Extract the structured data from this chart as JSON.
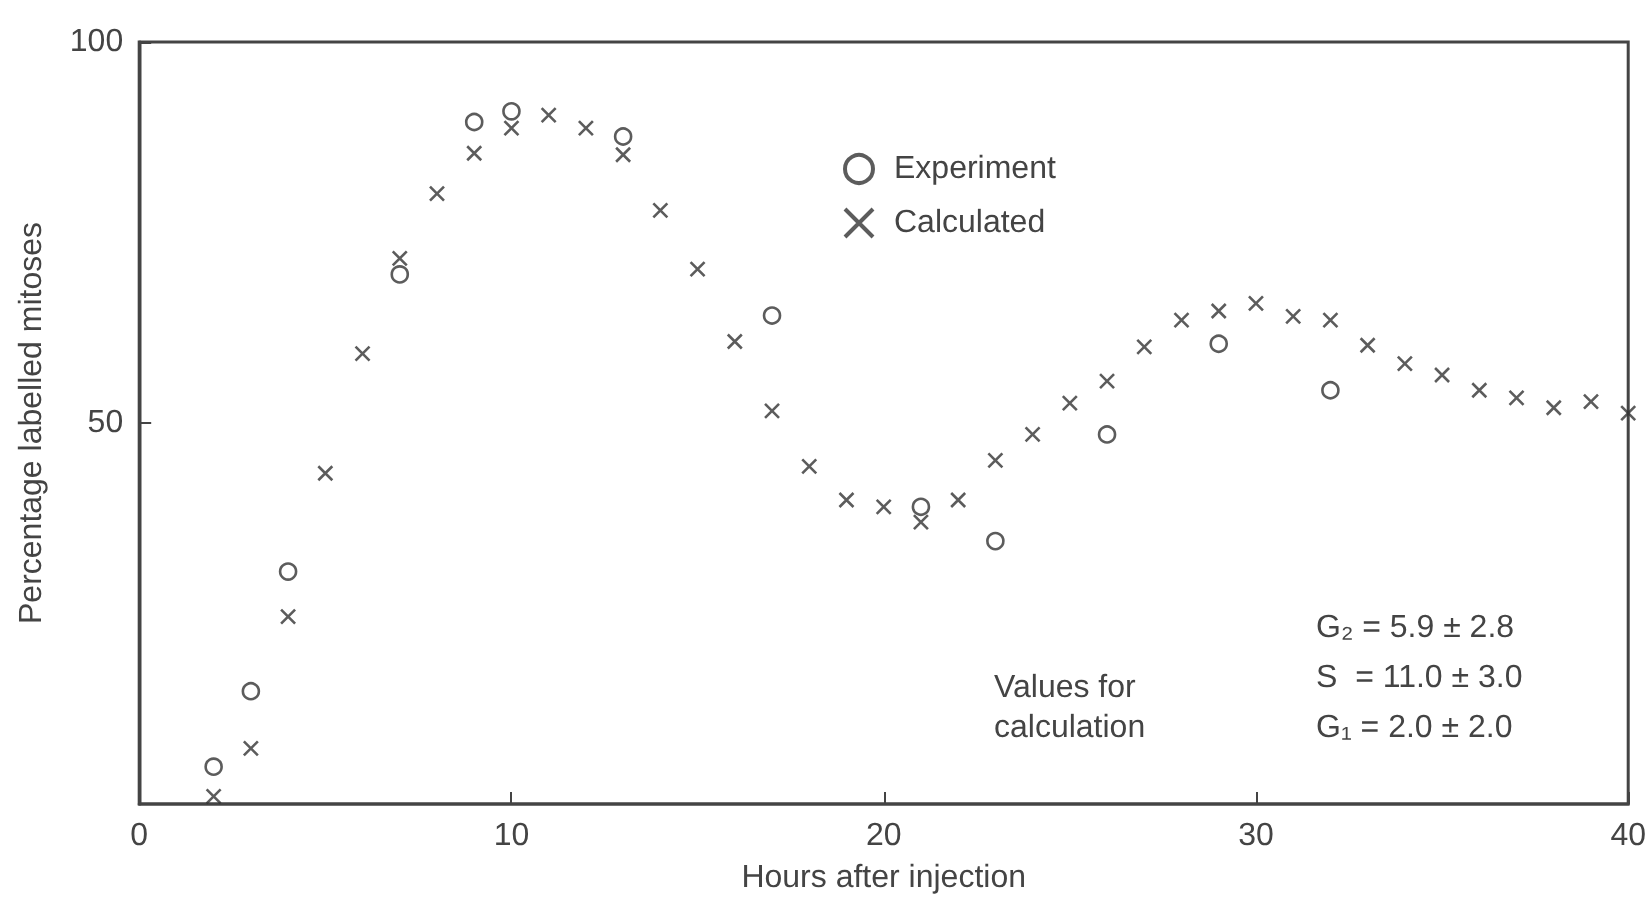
{
  "chart_data": {
    "type": "scatter",
    "xlabel": "Hours after injection",
    "ylabel": "Percentage labelled mitoses",
    "xlim": [
      0,
      40
    ],
    "xticks": [
      0,
      10,
      20,
      30,
      40
    ],
    "ylim": [
      0,
      100
    ],
    "yticks": [
      50,
      100
    ],
    "grid": false,
    "legend": "top",
    "series": [
      {
        "name": "Experiment",
        "color": "#333333",
        "marker": "circle",
        "x": [
          2,
          3,
          4,
          7,
          9,
          10,
          13,
          17,
          21,
          23,
          26,
          29,
          32
        ],
        "values": [
          4.9,
          14.8,
          30.5,
          69.5,
          89.5,
          90.9,
          87.6,
          64.1,
          39.0,
          34.5,
          48.5,
          60.4,
          54.3
        ]
      },
      {
        "name": "Calculated",
        "color": "#333333",
        "marker": "cross",
        "x": [
          2,
          3,
          4,
          5,
          6,
          7,
          8,
          9,
          10,
          11,
          12,
          13,
          14,
          15,
          16,
          17,
          18,
          19,
          20,
          21,
          22,
          23,
          24,
          25,
          26,
          27,
          28,
          29,
          30,
          31,
          32,
          33,
          34,
          35,
          36,
          37,
          38,
          39,
          40
        ],
        "values": [
          1.0,
          7.3,
          24.6,
          43.4,
          59.1,
          71.6,
          80.1,
          85.4,
          88.7,
          90.4,
          88.7,
          85.2,
          77.9,
          70.2,
          60.7,
          51.6,
          44.3,
          39.9,
          39.0,
          37.0,
          39.9,
          45.1,
          48.5,
          52.6,
          55.5,
          60.0,
          63.5,
          64.7,
          65.7,
          64.0,
          63.5,
          60.2,
          57.8,
          56.3,
          54.3,
          53.3,
          52.0,
          52.8,
          51.3
        ]
      }
    ],
    "annotations": [
      "Values for\ncalculation",
      "G₂ = 5.9 ± 2.8",
      "S  = 11.0 ± 3.0",
      "G₁ = 2.0 ± 2.0"
    ]
  }
}
